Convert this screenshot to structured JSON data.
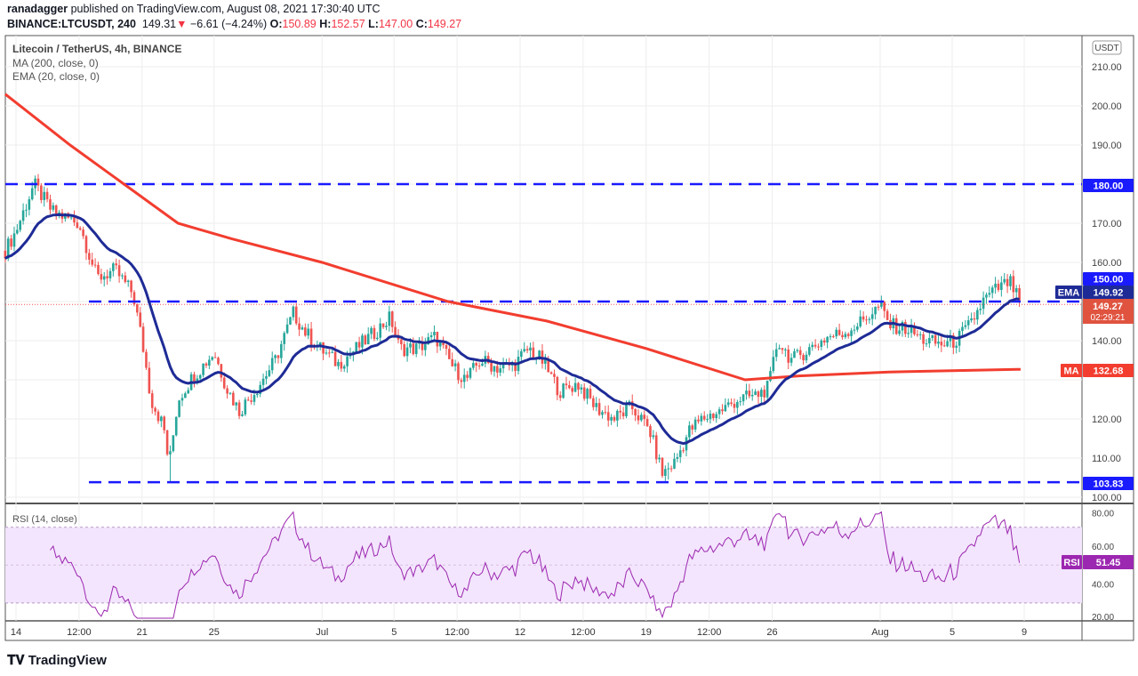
{
  "header": {
    "author": "ranadagger",
    "published": "published on TradingView.com, August 08, 2021 17:30:40 UTC",
    "symbol": "BINANCE:LTCUSDT, 240",
    "last": "149.31",
    "change": "−6.61 (−4.24%)",
    "o_label": "O:",
    "o": "150.89",
    "h_label": "H:",
    "h": "152.57",
    "l_label": "L:",
    "l": "147.00",
    "c_label": "C:",
    "c": "149.27"
  },
  "legend": {
    "title": "Litecoin / TetherUS, 4h, BINANCE",
    "ma": "MA (200, close, 0)",
    "ema": "EMA (20, close, 0)",
    "rsi": "RSI (14, close)"
  },
  "currency": "USDT",
  "labels": {
    "l180": "180.00",
    "l150": "150.00",
    "ema_tag": "EMA",
    "ema": "149.92",
    "price": "149.27",
    "countdown": "02:29:21",
    "ma_tag": "MA",
    "ma": "132.68",
    "l103": "103.83",
    "rsi_tag": "RSI",
    "rsi": "51.45"
  },
  "brand": "TradingView",
  "colors": {
    "up": "#26a69a",
    "down": "#ef5350",
    "ema": "#1e2b96",
    "ma": "#f23d2f",
    "level": "#1a1aff",
    "rsi": "#9c27b0"
  },
  "chart_data": {
    "type": "candlestick",
    "title": "Litecoin / TetherUS, 4h, BINANCE",
    "ylim": [
      97,
      214
    ],
    "y_ticks": [
      100,
      110,
      120,
      130,
      140,
      150,
      160,
      170,
      180,
      190,
      200,
      210
    ],
    "x_ticks": [
      "14",
      "12:00",
      "21",
      "25",
      "Jul",
      "5",
      "12:00",
      "12",
      "12:00",
      "19",
      "12:00",
      "26",
      "Aug",
      "5",
      "9"
    ],
    "x_tick_days": [
      0,
      3.5,
      7,
      11,
      17,
      21,
      24.5,
      28,
      31.5,
      35,
      38.5,
      42,
      48,
      52,
      56
    ],
    "levels": [
      180.0,
      150.0,
      103.83
    ],
    "close_path_days_price": [
      [
        -0.6,
        163
      ],
      [
        0,
        168
      ],
      [
        1,
        180
      ],
      [
        2,
        173
      ],
      [
        3.5,
        170
      ],
      [
        4.5,
        156
      ],
      [
        5.5,
        158
      ],
      [
        6.5,
        152
      ],
      [
        7,
        140
      ],
      [
        7.5,
        125
      ],
      [
        8.2,
        118
      ],
      [
        8.5,
        108
      ],
      [
        9,
        125
      ],
      [
        9.7,
        130
      ],
      [
        11,
        137
      ],
      [
        11.7,
        128
      ],
      [
        12.4,
        122
      ],
      [
        13.4,
        128
      ],
      [
        14.4,
        135
      ],
      [
        15.4,
        147
      ],
      [
        16.1,
        142
      ],
      [
        16.9,
        138
      ],
      [
        17.9,
        134
      ],
      [
        18.9,
        138
      ],
      [
        19.9,
        142
      ],
      [
        20.8,
        146
      ],
      [
        21.3,
        138
      ],
      [
        22.3,
        138
      ],
      [
        23.3,
        141
      ],
      [
        24.3,
        133
      ],
      [
        25,
        130
      ],
      [
        25.8,
        135
      ],
      [
        26.8,
        133
      ],
      [
        27.7,
        134
      ],
      [
        28.5,
        138
      ],
      [
        29.2,
        135
      ],
      [
        30.2,
        127
      ],
      [
        31.2,
        129
      ],
      [
        32.2,
        123
      ],
      [
        33.2,
        120
      ],
      [
        34.2,
        123
      ],
      [
        35.2,
        117
      ],
      [
        35.9,
        106
      ],
      [
        36.6,
        109
      ],
      [
        37.4,
        117
      ],
      [
        38.1,
        120
      ],
      [
        39.1,
        122
      ],
      [
        40.1,
        125
      ],
      [
        41.1,
        126
      ],
      [
        41.8,
        128
      ],
      [
        42.3,
        140
      ],
      [
        43.1,
        135
      ],
      [
        44.1,
        138
      ],
      [
        45.1,
        141
      ],
      [
        46,
        142
      ],
      [
        47,
        145
      ],
      [
        48,
        149
      ],
      [
        48.5,
        144
      ],
      [
        49.5,
        143
      ],
      [
        50.5,
        140
      ],
      [
        51.5,
        139
      ],
      [
        52.2,
        140
      ],
      [
        53,
        144
      ],
      [
        53.7,
        150
      ],
      [
        54.4,
        153
      ],
      [
        55.2,
        155
      ],
      [
        55.8,
        149.27
      ]
    ],
    "ma200_path_days_price": [
      [
        -0.6,
        203
      ],
      [
        3,
        190
      ],
      [
        6,
        180
      ],
      [
        9,
        170
      ],
      [
        12,
        166
      ],
      [
        17,
        160
      ],
      [
        24,
        150
      ],
      [
        29.5,
        145
      ],
      [
        35,
        138
      ],
      [
        40.5,
        130
      ],
      [
        43.5,
        131
      ],
      [
        48.5,
        132
      ],
      [
        55.8,
        132.68
      ]
    ],
    "ema20_last": 149.92,
    "rsi": {
      "period": 14,
      "last": 51.45,
      "ylim": [
        20,
        80
      ],
      "ticks": [
        20,
        40,
        60,
        80
      ],
      "bands": [
        30,
        70
      ]
    }
  }
}
